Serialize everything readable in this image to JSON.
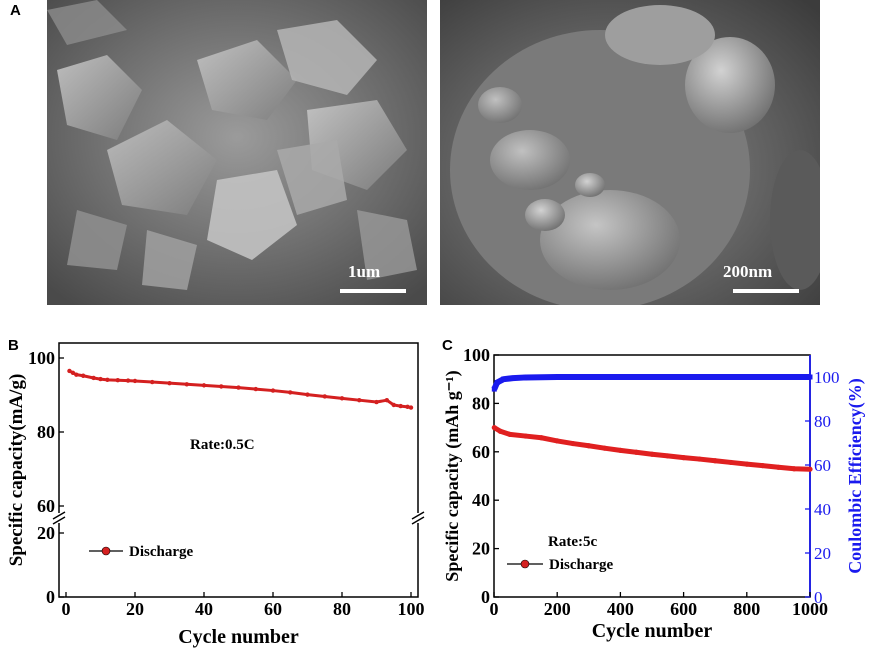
{
  "panel_a": {
    "letter": "A",
    "images": [
      {
        "scale_label": "1um"
      },
      {
        "scale_label": "200nm"
      }
    ]
  },
  "panel_b": {
    "letter": "B"
  },
  "panel_c": {
    "letter": "C"
  },
  "chart_data": [
    {
      "type": "line",
      "panel": "B",
      "xlabel": "Cycle number",
      "ylabel": "Specific capacity(mA/g)",
      "xlim": [
        0,
        100
      ],
      "x_ticks": [
        0,
        20,
        40,
        60,
        80,
        100
      ],
      "y_ticks_upper": [
        60,
        80,
        100
      ],
      "y_ticks_lower": [
        0,
        20
      ],
      "y_axis_break": true,
      "annotation": "Rate:0.5C",
      "legend": [
        {
          "name": "Discharge",
          "color": "#d42020"
        }
      ],
      "series": [
        {
          "name": "Discharge",
          "color": "#d42020",
          "x": [
            1,
            2,
            3,
            5,
            8,
            10,
            12,
            15,
            18,
            20,
            25,
            30,
            35,
            40,
            45,
            50,
            55,
            60,
            65,
            70,
            75,
            80,
            85,
            90,
            93,
            95,
            97,
            99,
            100
          ],
          "y": [
            96.5,
            96.0,
            95.5,
            95.2,
            94.6,
            94.3,
            94.1,
            94.0,
            93.9,
            93.8,
            93.5,
            93.2,
            92.9,
            92.6,
            92.3,
            92.0,
            91.6,
            91.2,
            90.7,
            90.1,
            89.6,
            89.1,
            88.6,
            88.1,
            88.6,
            87.3,
            87.0,
            86.8,
            86.6
          ]
        }
      ]
    },
    {
      "type": "line",
      "panel": "C",
      "xlabel": "Cycle number",
      "ylabel": "Specific capacity (mAh g⁻¹)",
      "y2label": "Coulombic Efficiency(%)",
      "xlim": [
        0,
        1000
      ],
      "ylim": [
        0,
        100
      ],
      "y2lim": [
        0,
        110
      ],
      "x_ticks": [
        0,
        200,
        400,
        600,
        800,
        1000
      ],
      "y_ticks": [
        0,
        20,
        40,
        60,
        80,
        100
      ],
      "y2_ticks": [
        0,
        20,
        40,
        60,
        80,
        100
      ],
      "annotation": "Rate:5c",
      "legend": [
        {
          "name": "Discharge",
          "color": "#d42020"
        }
      ],
      "series": [
        {
          "name": "Discharge",
          "axis": "left",
          "color": "#e02020",
          "x": [
            1,
            20,
            50,
            100,
            150,
            200,
            250,
            300,
            350,
            400,
            450,
            500,
            550,
            600,
            650,
            700,
            750,
            800,
            850,
            900,
            950,
            1000
          ],
          "y": [
            70.0,
            68.5,
            67.2,
            66.5,
            65.8,
            64.5,
            63.4,
            62.5,
            61.5,
            60.6,
            59.8,
            59.0,
            58.3,
            57.6,
            57.0,
            56.3,
            55.6,
            54.9,
            54.3,
            53.6,
            53.0,
            52.8
          ]
        },
        {
          "name": "Coulombic Efficiency",
          "axis": "right",
          "color": "#1a1aee",
          "x": [
            1,
            10,
            30,
            60,
            100,
            200,
            300,
            400,
            500,
            600,
            700,
            800,
            900,
            1000
          ],
          "y": [
            94.5,
            97.5,
            99.0,
            99.5,
            99.8,
            100.0,
            100.0,
            100.0,
            100.0,
            100.0,
            100.0,
            100.0,
            100.0,
            100.0
          ]
        }
      ]
    }
  ]
}
